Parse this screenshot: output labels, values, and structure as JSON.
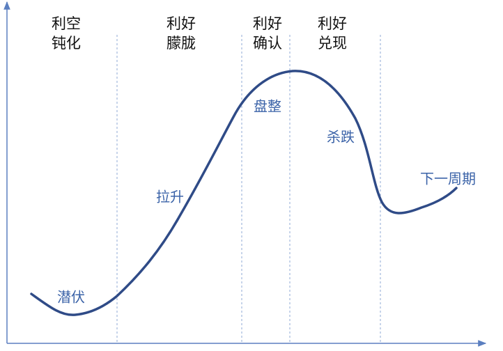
{
  "phases": [
    {
      "line1": "利空",
      "line2": "钝化"
    },
    {
      "line1": "利好",
      "line2": "朦胧"
    },
    {
      "line1": "利好",
      "line2": "确认"
    },
    {
      "line1": "利好",
      "line2": "兑现"
    }
  ],
  "stages": [
    "潜伏",
    "拉升",
    "盘整",
    "杀跌",
    "下一周期"
  ]
}
